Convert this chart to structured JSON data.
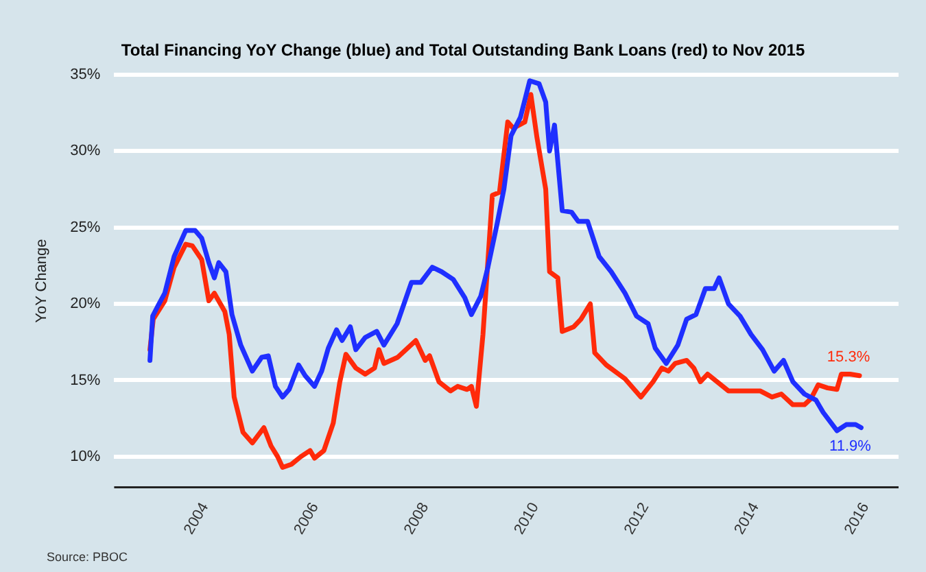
{
  "chart_data": {
    "type": "line",
    "title": "Total Financing YoY Change (blue) and Total Outstanding Bank Loans (red) to Nov 2015",
    "ylabel": "YoY Change",
    "xlim": [
      2002.35,
      2016.6
    ],
    "xticks": [
      2004,
      2006,
      2008,
      2010,
      2012,
      2014,
      2016
    ],
    "ylim": [
      8,
      35
    ],
    "yticks": [
      {
        "value": 10,
        "label": "10%"
      },
      {
        "value": 15,
        "label": "15%"
      },
      {
        "value": 20,
        "label": "20%"
      },
      {
        "value": 25,
        "label": "25%"
      },
      {
        "value": 30,
        "label": "30%"
      },
      {
        "value": 35,
        "label": "35%"
      }
    ],
    "grid": "y",
    "legend": false,
    "marker": "none",
    "line_style": "solid",
    "series": [
      {
        "color": "#1f2fff",
        "x": [
          2003.0,
          2003.05,
          2003.15,
          2003.27,
          2003.44,
          2003.65,
          2003.82,
          2003.94,
          2004.07,
          2004.17,
          2004.25,
          2004.38,
          2004.49,
          2004.65,
          2004.86,
          2005.03,
          2005.15,
          2005.28,
          2005.41,
          2005.53,
          2005.7,
          2005.82,
          2005.99,
          2006.12,
          2006.24,
          2006.39,
          2006.49,
          2006.64,
          2006.74,
          2006.91,
          2007.12,
          2007.25,
          2007.49,
          2007.75,
          2007.92,
          2008.13,
          2008.3,
          2008.51,
          2008.72,
          2008.84,
          2009.01,
          2009.14,
          2009.31,
          2009.43,
          2009.56,
          2009.73,
          2009.9,
          2010.07,
          2010.19,
          2010.26,
          2010.35,
          2010.49,
          2010.66,
          2010.78,
          2010.95,
          2011.16,
          2011.38,
          2011.63,
          2011.84,
          2012.05,
          2012.18,
          2012.38,
          2012.59,
          2012.75,
          2012.92,
          2013.09,
          2013.25,
          2013.34,
          2013.51,
          2013.72,
          2013.92,
          2014.13,
          2014.34,
          2014.51,
          2014.68,
          2014.89,
          2015.1,
          2015.23,
          2015.48,
          2015.65,
          2015.82,
          2015.92
        ],
        "values": [
          16.3,
          19.2,
          19.9,
          20.7,
          23.1,
          24.8,
          24.8,
          24.3,
          22.7,
          21.7,
          22.7,
          22.1,
          19.3,
          17.3,
          15.6,
          16.5,
          16.6,
          14.6,
          13.9,
          14.4,
          16.0,
          15.3,
          14.6,
          15.6,
          17.1,
          18.3,
          17.6,
          18.5,
          17.0,
          17.8,
          18.2,
          17.3,
          18.7,
          21.4,
          21.4,
          22.4,
          22.1,
          21.6,
          20.4,
          19.3,
          20.5,
          22.4,
          25.3,
          27.5,
          31.0,
          32.2,
          34.6,
          34.4,
          33.2,
          30.0,
          31.7,
          26.1,
          26.0,
          25.4,
          25.4,
          23.1,
          22.1,
          20.7,
          19.2,
          18.7,
          17.1,
          16.1,
          17.3,
          19.0,
          19.3,
          21.0,
          21.0,
          21.7,
          20.0,
          19.2,
          18.0,
          17.0,
          15.6,
          16.3,
          14.9,
          14.1,
          13.7,
          12.9,
          11.7,
          12.1,
          12.1,
          11.9
        ]
      },
      {
        "color": "#ff2a0a",
        "x": [
          2003.0,
          2003.06,
          2003.27,
          2003.44,
          2003.65,
          2003.77,
          2003.94,
          2004.07,
          2004.17,
          2004.36,
          2004.44,
          2004.53,
          2004.69,
          2004.86,
          2005.07,
          2005.2,
          2005.32,
          2005.41,
          2005.57,
          2005.74,
          2005.91,
          2005.99,
          2006.16,
          2006.33,
          2006.45,
          2006.56,
          2006.74,
          2006.91,
          2007.08,
          2007.16,
          2007.25,
          2007.5,
          2007.83,
          2008.0,
          2008.08,
          2008.25,
          2008.46,
          2008.59,
          2008.76,
          2008.84,
          2008.93,
          2009.05,
          2009.22,
          2009.35,
          2009.5,
          2009.6,
          2009.81,
          2009.92,
          2010.03,
          2010.19,
          2010.26,
          2010.41,
          2010.49,
          2010.7,
          2010.83,
          2011.0,
          2011.08,
          2011.29,
          2011.63,
          2011.92,
          2012.14,
          2012.3,
          2012.42,
          2012.54,
          2012.75,
          2012.88,
          2013.0,
          2013.13,
          2013.34,
          2013.51,
          2013.72,
          2013.97,
          2014.09,
          2014.3,
          2014.47,
          2014.68,
          2014.89,
          2015.01,
          2015.14,
          2015.31,
          2015.48,
          2015.56,
          2015.72,
          2015.89
        ],
        "values": [
          17.0,
          19.0,
          20.2,
          22.4,
          23.9,
          23.8,
          22.9,
          20.2,
          20.7,
          19.5,
          18.0,
          13.9,
          11.6,
          10.9,
          11.9,
          10.7,
          10.0,
          9.3,
          9.5,
          10.0,
          10.4,
          9.9,
          10.4,
          12.2,
          14.9,
          16.7,
          15.8,
          15.4,
          15.8,
          17.0,
          16.1,
          16.5,
          17.6,
          16.3,
          16.6,
          14.9,
          14.3,
          14.6,
          14.4,
          14.6,
          13.3,
          18.0,
          27.1,
          27.3,
          31.9,
          31.5,
          31.9,
          33.7,
          30.9,
          27.5,
          22.1,
          21.7,
          18.2,
          18.5,
          19.0,
          20.0,
          16.8,
          16.0,
          15.1,
          13.9,
          14.9,
          15.8,
          15.6,
          16.1,
          16.3,
          15.8,
          14.9,
          15.4,
          14.8,
          14.3,
          14.3,
          14.3,
          14.3,
          13.9,
          14.1,
          13.4,
          13.4,
          13.8,
          14.7,
          14.5,
          14.4,
          15.4,
          15.4,
          15.3
        ]
      }
    ],
    "annotations": [
      {
        "text": "15.3%",
        "x": 2015.89,
        "y": 15.3
      },
      {
        "text": "11.9%",
        "x": 2015.92,
        "y": 11.9
      },
      "Source: PBOC"
    ]
  }
}
